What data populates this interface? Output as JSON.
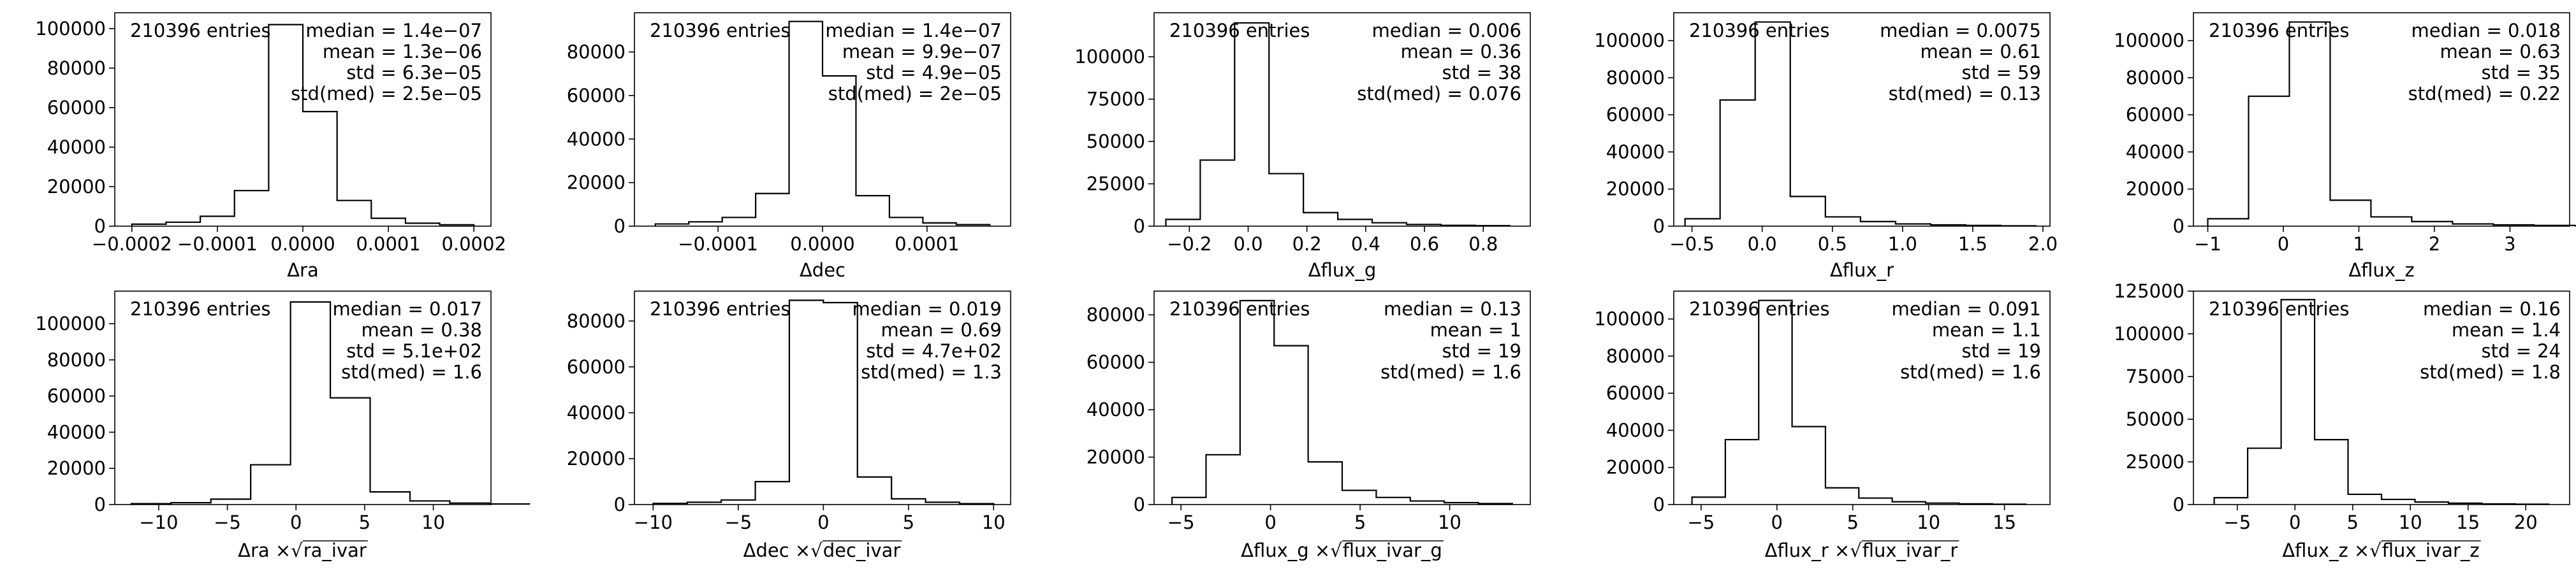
{
  "chart_data": [
    {
      "type": "histogram",
      "xlabel": "Δra",
      "entries_label": "210396 entries",
      "stats": [
        "median = 1.4e−07",
        "mean = 1.3e−06",
        "std = 6.3e−05",
        "std(med) = 2.5e−05"
      ],
      "xlim": [
        -0.00022,
        0.00022
      ],
      "ylim": [
        0,
        108000
      ],
      "xticks": [
        -0.0002,
        -0.0001,
        0.0,
        0.0001,
        0.0002
      ],
      "xtick_labels": [
        "−0.0002",
        "−0.0001",
        "0.0000",
        "0.0001",
        "0.0002"
      ],
      "yticks": [
        0,
        20000,
        40000,
        60000,
        80000,
        100000
      ],
      "ytick_labels": [
        "0",
        "20000",
        "40000",
        "60000",
        "80000",
        "100000"
      ],
      "bin_edges": [
        -0.0002,
        -0.00016,
        -0.00012,
        -8e-05,
        -4e-05,
        0.0,
        4e-05,
        8e-05,
        0.00012,
        0.00016,
        0.0002
      ],
      "counts": [
        1000,
        2000,
        5000,
        18000,
        102000,
        58000,
        13000,
        4000,
        1500,
        700
      ]
    },
    {
      "type": "histogram",
      "xlabel": "Δdec",
      "entries_label": "210396 entries",
      "stats": [
        "median = 1.4e−07",
        "mean = 9.9e−07",
        "std = 4.9e−05",
        "std(med) = 2e−05"
      ],
      "xlim": [
        -0.00018,
        0.00018
      ],
      "ylim": [
        0,
        98000
      ],
      "xticks": [
        -0.0001,
        0.0,
        0.0001
      ],
      "xtick_labels": [
        "−0.0001",
        "0.0000",
        "0.0001"
      ],
      "yticks": [
        0,
        20000,
        40000,
        60000,
        80000
      ],
      "ytick_labels": [
        "0",
        "20000",
        "40000",
        "60000",
        "80000"
      ],
      "bin_edges": [
        -0.00016,
        -0.000128,
        -9.6e-05,
        -6.4e-05,
        -3.2e-05,
        0.0,
        3.2e-05,
        6.4e-05,
        9.6e-05,
        0.000128,
        0.00016
      ],
      "counts": [
        1000,
        2000,
        4000,
        15000,
        94000,
        69000,
        14000,
        4000,
        1500,
        700
      ]
    },
    {
      "type": "histogram",
      "xlabel": "Δflux_g",
      "entries_label": "210396 entries",
      "stats": [
        "median = 0.006",
        "mean = 0.36",
        "std = 38",
        "std(med) = 0.076"
      ],
      "xlim": [
        -0.32,
        0.96
      ],
      "ylim": [
        0,
        126000
      ],
      "xticks": [
        -0.2,
        0.0,
        0.2,
        0.4,
        0.6,
        0.8
      ],
      "xtick_labels": [
        "−0.2",
        "0.0",
        "0.2",
        "0.4",
        "0.6",
        "0.8"
      ],
      "yticks": [
        0,
        25000,
        50000,
        75000,
        100000
      ],
      "ytick_labels": [
        "0",
        "25000",
        "50000",
        "75000",
        "100000"
      ],
      "bin_edges": [
        -0.28,
        -0.163,
        -0.046,
        0.071,
        0.188,
        0.305,
        0.422,
        0.539,
        0.656,
        0.773,
        0.89
      ],
      "counts": [
        4000,
        39000,
        120000,
        31000,
        8000,
        4000,
        2000,
        1000,
        500,
        300
      ]
    },
    {
      "type": "histogram",
      "xlabel": "Δflux_r",
      "entries_label": "210396 entries",
      "stats": [
        "median = 0.0075",
        "mean = 0.61",
        "std = 59",
        "std(med) = 0.13"
      ],
      "xlim": [
        -0.63,
        2.05
      ],
      "ylim": [
        0,
        115000
      ],
      "xticks": [
        -0.5,
        0.0,
        0.5,
        1.0,
        1.5,
        2.0
      ],
      "xtick_labels": [
        "−0.5",
        "0.0",
        "0.5",
        "1.0",
        "1.5",
        "2.0"
      ],
      "yticks": [
        0,
        20000,
        40000,
        60000,
        80000,
        100000
      ],
      "ytick_labels": [
        "0",
        "20000",
        "40000",
        "60000",
        "80000",
        "100000"
      ],
      "bin_edges": [
        -0.55,
        -0.3,
        -0.05,
        0.2,
        0.45,
        0.7,
        0.95,
        1.2,
        1.45,
        1.7,
        1.95
      ],
      "counts": [
        4000,
        68000,
        110000,
        16000,
        5000,
        2500,
        1200,
        700,
        400,
        200
      ]
    },
    {
      "type": "histogram",
      "xlabel": "Δflux_z",
      "entries_label": "210396 entries",
      "stats": [
        "median = 0.018",
        "mean = 0.63",
        "std = 35",
        "std(med) = 0.22"
      ],
      "xlim": [
        -1.19,
        3.79
      ],
      "ylim": [
        0,
        115000
      ],
      "xticks": [
        -1,
        0,
        1,
        2,
        3
      ],
      "xtick_labels": [
        "−1",
        "0",
        "1",
        "2",
        "3"
      ],
      "yticks": [
        0,
        20000,
        40000,
        60000,
        80000,
        100000
      ],
      "ytick_labels": [
        "0",
        "20000",
        "40000",
        "60000",
        "80000",
        "100000"
      ],
      "bin_edges": [
        -1.0,
        -0.46,
        0.08,
        0.62,
        1.16,
        1.7,
        2.24,
        2.78,
        3.32,
        3.86,
        4.4
      ],
      "counts": [
        4000,
        70000,
        110000,
        14000,
        5000,
        2500,
        1200,
        700,
        400,
        200
      ]
    },
    {
      "type": "histogram",
      "xlabel": "Δra × √ra_ivar",
      "entries_label": "210396 entries",
      "stats": [
        "median = 0.017",
        "mean = 0.38",
        "std = 5.1e+02",
        "std(med) = 1.6"
      ],
      "xlim": [
        -13.2,
        14.2
      ],
      "ylim": [
        0,
        118000
      ],
      "xticks": [
        -10,
        -5,
        0,
        5,
        10
      ],
      "xtick_labels": [
        "−10",
        "−5",
        "0",
        "5",
        "10"
      ],
      "yticks": [
        0,
        20000,
        40000,
        60000,
        80000,
        100000
      ],
      "ytick_labels": [
        "0",
        "20000",
        "40000",
        "60000",
        "80000",
        "100000"
      ],
      "bin_edges": [
        -12.0,
        -9.1,
        -6.2,
        -3.3,
        -0.4,
        2.5,
        5.4,
        8.3,
        11.2,
        14.1,
        17.0
      ],
      "counts": [
        500,
        1000,
        3000,
        22000,
        112000,
        59000,
        7000,
        2000,
        800,
        300
      ]
    },
    {
      "type": "histogram",
      "xlabel": "Δdec × √dec_ivar",
      "entries_label": "210396 entries",
      "stats": [
        "median = 0.019",
        "mean = 0.69",
        "std = 4.7e+02",
        "std(med) = 1.3"
      ],
      "xlim": [
        -11.1,
        11.0
      ],
      "ylim": [
        0,
        93000
      ],
      "xticks": [
        -10,
        -5,
        0,
        5,
        10
      ],
      "xtick_labels": [
        "−10",
        "−5",
        "0",
        "5",
        "10"
      ],
      "yticks": [
        0,
        20000,
        40000,
        60000,
        80000
      ],
      "ytick_labels": [
        "0",
        "20000",
        "40000",
        "60000",
        "80000"
      ],
      "bin_edges": [
        -10.0,
        -8.0,
        -6.0,
        -4.0,
        -2.0,
        0.0,
        2.0,
        4.0,
        6.0,
        8.0,
        10.0
      ],
      "counts": [
        500,
        1000,
        2000,
        10000,
        89000,
        88000,
        12000,
        2500,
        1000,
        400
      ]
    },
    {
      "type": "histogram",
      "xlabel": "Δflux_g × √flux_ivar_g",
      "entries_label": "210396 entries",
      "stats": [
        "median = 0.13",
        "mean = 1",
        "std = 19",
        "std(med) = 1.6"
      ],
      "xlim": [
        -6.5,
        14.5
      ],
      "ylim": [
        0,
        90000
      ],
      "xticks": [
        -5,
        0,
        5,
        10
      ],
      "xtick_labels": [
        "−5",
        "0",
        "5",
        "10"
      ],
      "yticks": [
        0,
        20000,
        40000,
        60000,
        80000
      ],
      "ytick_labels": [
        "0",
        "20000",
        "40000",
        "60000",
        "80000"
      ],
      "bin_edges": [
        -5.5,
        -3.6,
        -1.7,
        0.2,
        2.1,
        4.0,
        5.9,
        7.8,
        9.7,
        11.6,
        13.5
      ],
      "counts": [
        3000,
        21000,
        86000,
        67000,
        18000,
        6000,
        3000,
        1500,
        800,
        400
      ]
    },
    {
      "type": "histogram",
      "xlabel": "Δflux_r × √flux_ivar_r",
      "entries_label": "210396 entries",
      "stats": [
        "median = 0.091",
        "mean = 1.1",
        "std = 19",
        "std(med) = 1.6"
      ],
      "xlim": [
        -6.8,
        18.0
      ],
      "ylim": [
        0,
        115000
      ],
      "xticks": [
        -5,
        0,
        5,
        10,
        15
      ],
      "xtick_labels": [
        "−5",
        "0",
        "5",
        "10",
        "15"
      ],
      "yticks": [
        0,
        20000,
        40000,
        60000,
        80000,
        100000
      ],
      "ytick_labels": [
        "0",
        "20000",
        "40000",
        "60000",
        "80000",
        "100000"
      ],
      "bin_edges": [
        -5.6,
        -3.4,
        -1.2,
        1.0,
        3.2,
        5.4,
        7.6,
        9.8,
        12.0,
        14.2,
        16.4
      ],
      "counts": [
        4000,
        35000,
        110000,
        42000,
        9000,
        3500,
        1500,
        800,
        400,
        200
      ]
    },
    {
      "type": "histogram",
      "xlabel": "Δflux_z × √flux_ivar_z",
      "entries_label": "210396 entries",
      "stats": [
        "median = 0.16",
        "mean = 1.4",
        "std = 24",
        "std(med) = 1.8"
      ],
      "xlim": [
        -8.8,
        23.8
      ],
      "ylim": [
        0,
        125000
      ],
      "xticks": [
        -5,
        0,
        5,
        10,
        15,
        20
      ],
      "xtick_labels": [
        "−5",
        "0",
        "5",
        "10",
        "15",
        "20"
      ],
      "yticks": [
        0,
        25000,
        50000,
        75000,
        100000,
        125000
      ],
      "ytick_labels": [
        "0",
        "25000",
        "50000",
        "75000",
        "100000",
        "125000"
      ],
      "bin_edges": [
        -7.0,
        -4.1,
        -1.2,
        1.7,
        4.6,
        7.5,
        10.4,
        13.3,
        16.2,
        19.1,
        22.0
      ],
      "counts": [
        4000,
        33000,
        120000,
        38000,
        6000,
        3000,
        1500,
        800,
        400,
        200
      ]
    }
  ]
}
